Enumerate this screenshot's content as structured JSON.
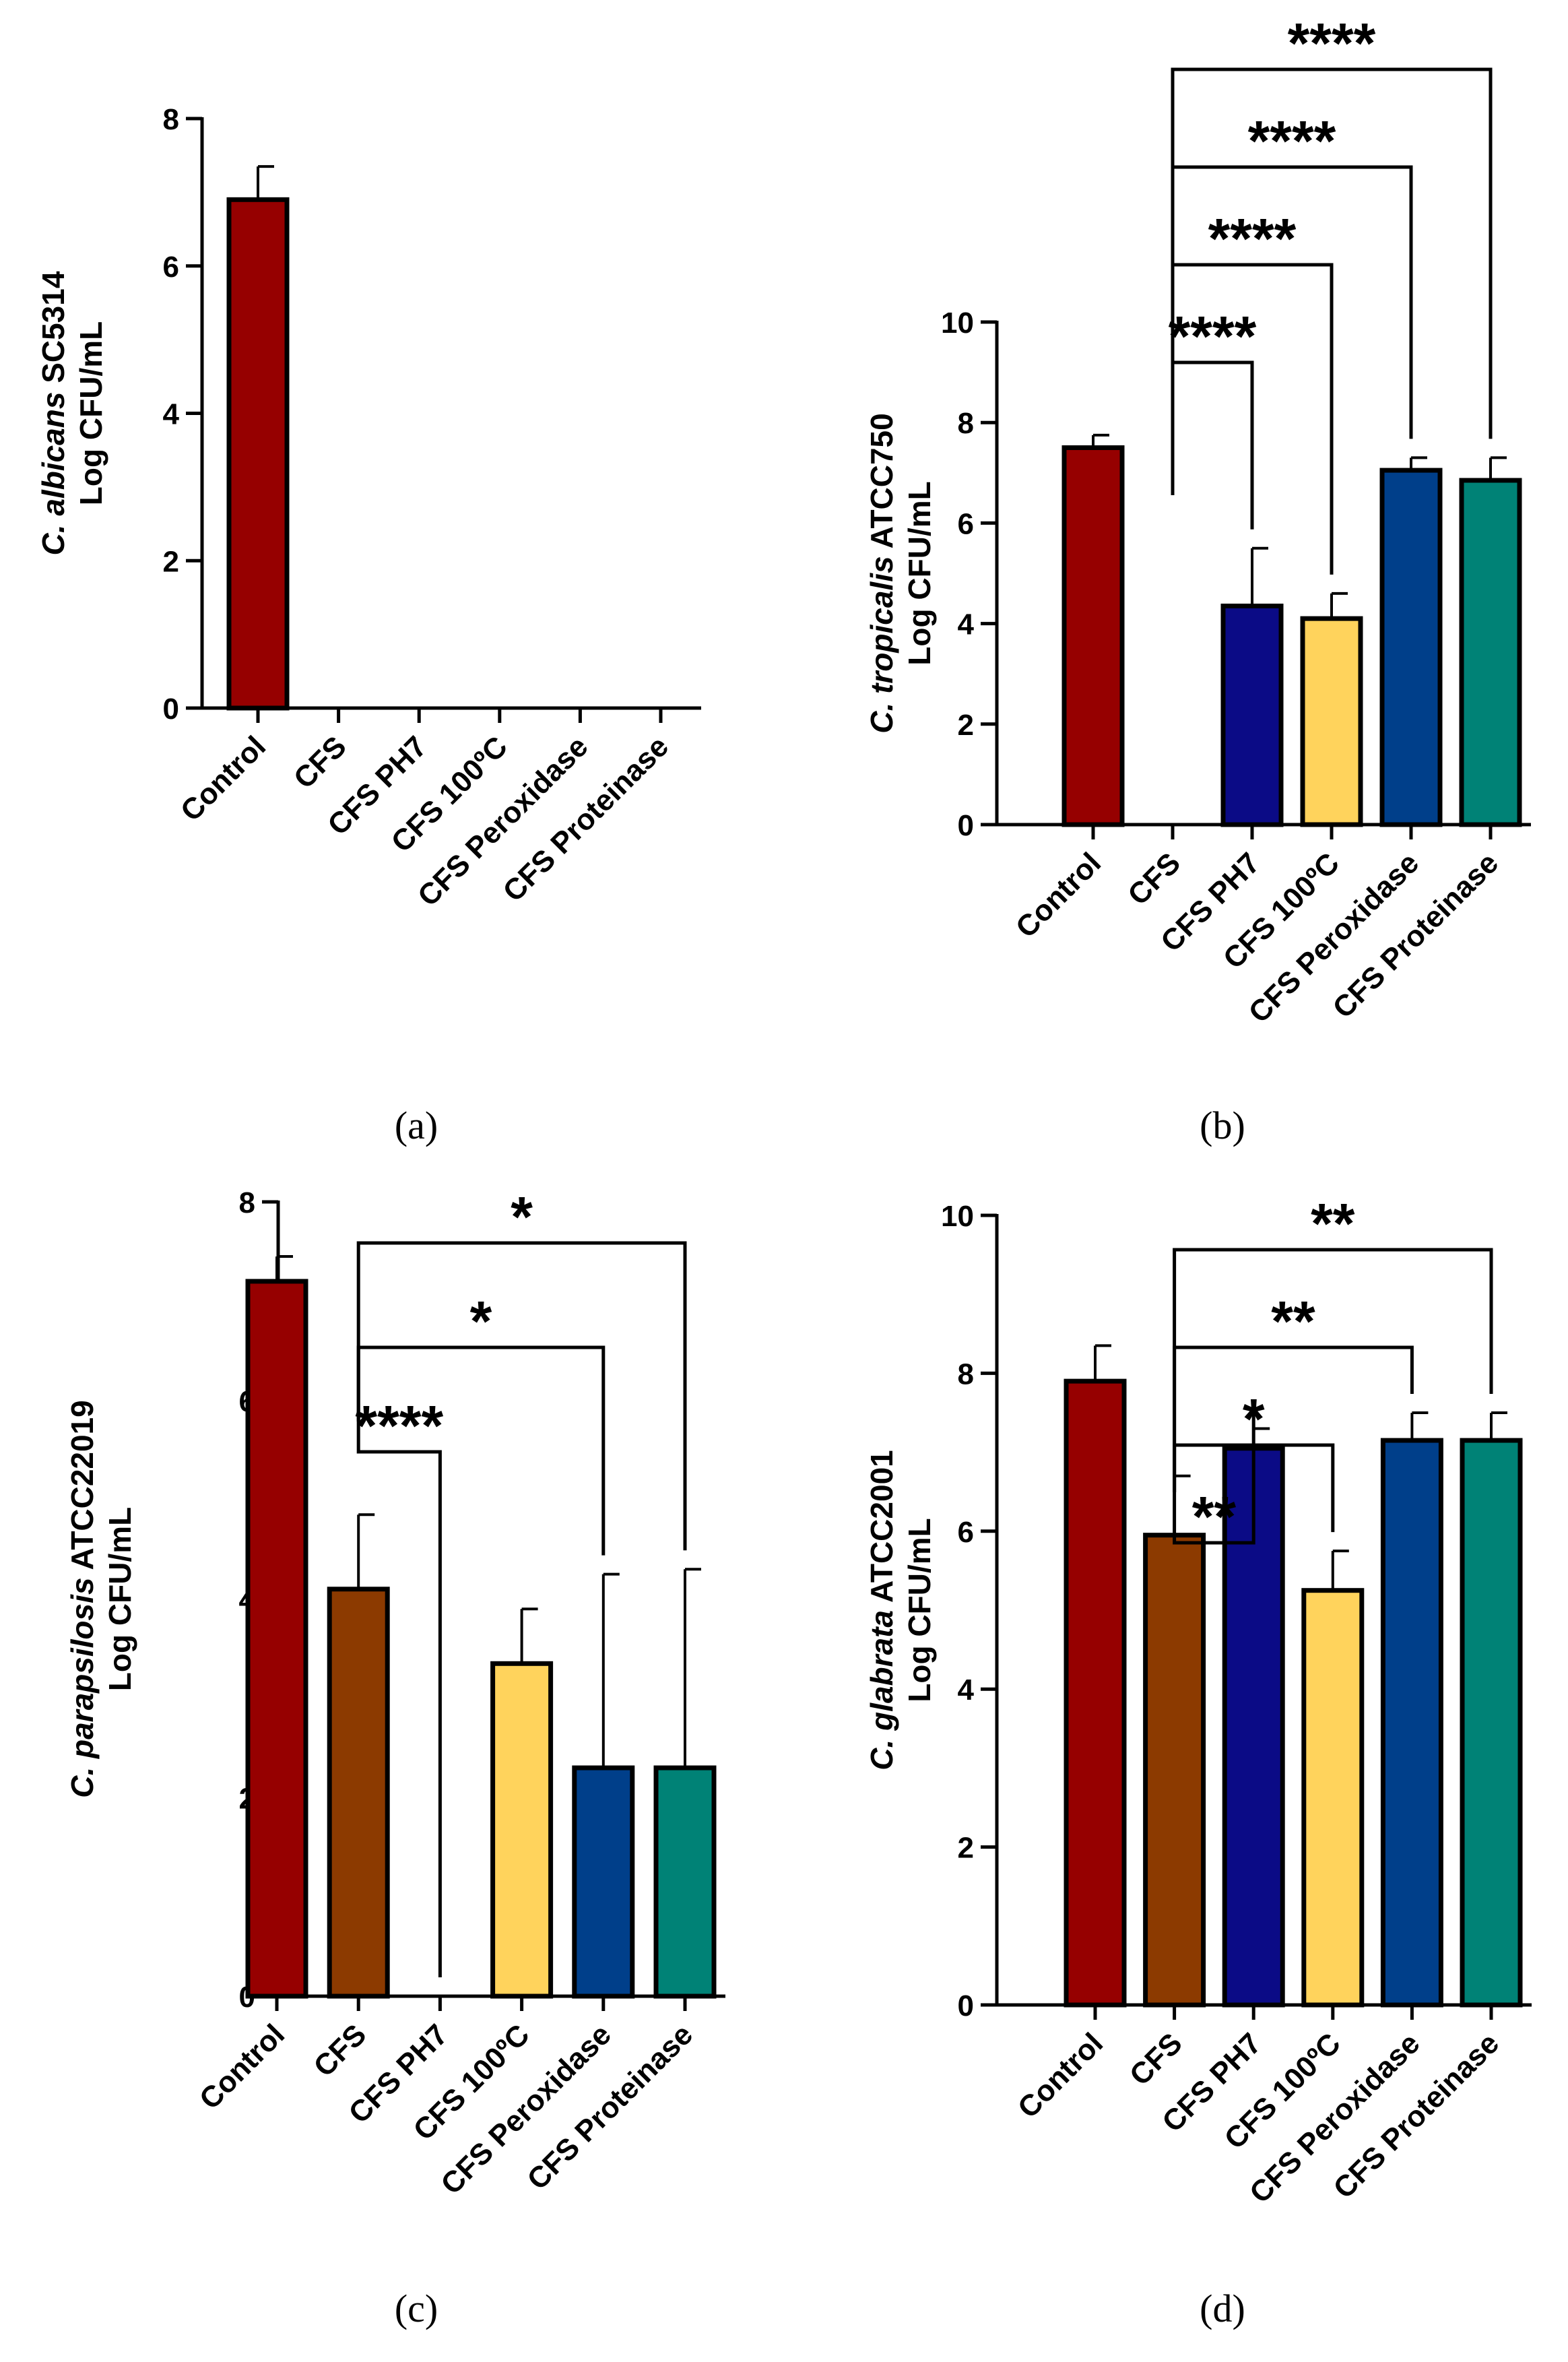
{
  "colors": {
    "Control": "#960000",
    "CFS": "#8c3a00",
    "CFS PH7": "#0b0b86",
    "CFS 100ºC": "#ffd35c",
    "CFS Peroxidase": "#003f8a",
    "CFS Proteinase": "#008276",
    "axis": "#000000"
  },
  "chart_data": [
    {
      "type": "bar",
      "panel": "(a)",
      "ylabel_species": "C. albicans",
      "ylabel_strain": " SC5314",
      "ylabel_unit": "Log CFU/mL",
      "ylim": [
        0,
        8
      ],
      "yticks": [
        0,
        2,
        4,
        6,
        8
      ],
      "categories": [
        "Control",
        "CFS",
        "CFS PH7",
        "CFS 100ºC",
        "CFS Peroxidase",
        "CFS Proteinase"
      ],
      "values": [
        6.9,
        0,
        0,
        0,
        0,
        0
      ],
      "errors": [
        0.45,
        0,
        0,
        0,
        0,
        0
      ],
      "significance": []
    },
    {
      "type": "bar",
      "panel": "(b)",
      "ylabel_species": "C. tropicalis",
      "ylabel_strain": " ATCC750",
      "ylabel_unit": "Log CFU/mL",
      "ylim": [
        0,
        10
      ],
      "yticks": [
        0,
        2,
        4,
        6,
        8,
        10
      ],
      "categories": [
        "Control",
        "CFS",
        "CFS PH7",
        "CFS 100ºC",
        "CFS Peroxidase",
        "CFS Proteinase"
      ],
      "values": [
        7.5,
        0,
        4.35,
        4.1,
        7.05,
        6.85
      ],
      "errors": [
        0.25,
        0,
        1.15,
        0.5,
        0.25,
        0.45
      ],
      "significance": [
        {
          "from": 1,
          "to": 2,
          "label": "****"
        },
        {
          "from": 1,
          "to": 3,
          "label": "****"
        },
        {
          "from": 1,
          "to": 4,
          "label": "****"
        },
        {
          "from": 1,
          "to": 5,
          "label": "****"
        }
      ]
    },
    {
      "type": "bar",
      "panel": "(c)",
      "ylabel_species": "C. parapsilosis",
      "ylabel_strain": " ATCC22019",
      "ylabel_unit": "Log CFU/mL",
      "ylim": [
        0,
        8
      ],
      "yticks": [
        0,
        2,
        4,
        6,
        8
      ],
      "categories": [
        "Control",
        "CFS",
        "CFS PH7",
        "CFS 100ºC",
        "CFS Peroxidase",
        "CFS Proteinase"
      ],
      "values": [
        7.2,
        4.1,
        0,
        3.35,
        2.3,
        2.3
      ],
      "errors": [
        0.25,
        0.75,
        0,
        0.55,
        1.95,
        2.0
      ],
      "significance": [
        {
          "from": 1,
          "to": 2,
          "label": "****"
        },
        {
          "from": 1,
          "to": 4,
          "label": "*"
        },
        {
          "from": 1,
          "to": 5,
          "label": "*"
        }
      ]
    },
    {
      "type": "bar",
      "panel": "(d)",
      "ylabel_species": "C. glabrata",
      "ylabel_strain": " ATCC2001",
      "ylabel_unit": "Log CFU/mL",
      "ylim": [
        0,
        10
      ],
      "yticks": [
        0,
        2,
        4,
        6,
        8,
        10
      ],
      "categories": [
        "Control",
        "CFS",
        "CFS PH7",
        "CFS 100ºC",
        "CFS Peroxidase",
        "CFS Proteinase"
      ],
      "values": [
        7.9,
        5.95,
        7.05,
        5.25,
        7.15,
        7.15
      ],
      "errors": [
        0.45,
        0.75,
        0.25,
        0.5,
        0.35,
        0.35
      ],
      "significance": [
        {
          "from": 1,
          "to": 2,
          "label": "**"
        },
        {
          "from": 1,
          "to": 3,
          "label": "*"
        },
        {
          "from": 1,
          "to": 4,
          "label": "**"
        },
        {
          "from": 1,
          "to": 5,
          "label": "**"
        }
      ]
    }
  ]
}
